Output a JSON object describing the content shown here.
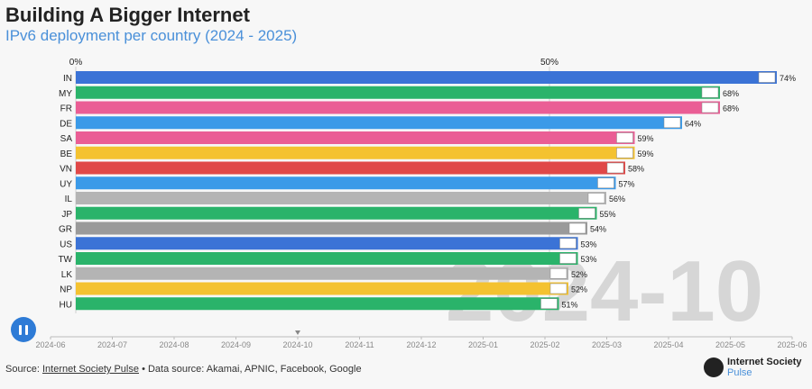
{
  "title": "Building A Bigger Internet",
  "subtitle": "IPv6 deployment per country (2024 - 2025)",
  "watermark": "2024-10",
  "footer": {
    "source_label": "Source:",
    "source_link": "Internet Society Pulse",
    "data_source": "• Data source: Akamai, APNIC, Facebook, Google"
  },
  "logo": {
    "line1": "Internet Society",
    "line2": "Pulse"
  },
  "controls": {
    "play_pause": "pause"
  },
  "chart_data": {
    "type": "bar",
    "orientation": "horizontal",
    "x_ticks": [
      "0%",
      "50%"
    ],
    "categories": [
      "IN",
      "MY",
      "FR",
      "DE",
      "SA",
      "BE",
      "VN",
      "UY",
      "IL",
      "JP",
      "GR",
      "US",
      "TW",
      "LK",
      "NP",
      "HU"
    ],
    "values": [
      74,
      68,
      68,
      64,
      59,
      59,
      58,
      57,
      56,
      55,
      54,
      53,
      53,
      52,
      52,
      51
    ],
    "value_labels": [
      "74%",
      "68%",
      "68%",
      "64%",
      "59%",
      "59%",
      "58%",
      "57%",
      "56%",
      "55%",
      "54%",
      "53%",
      "53%",
      "52%",
      "52%",
      "51%"
    ],
    "colors": [
      "#3b73d6",
      "#2ab36a",
      "#ea5e95",
      "#3b9ae8",
      "#ea5e95",
      "#f4c230",
      "#e04848",
      "#3b9ae8",
      "#b4b4b4",
      "#2ab36a",
      "#9a9a9a",
      "#3b73d6",
      "#2ab36a",
      "#b4b4b4",
      "#f4c230",
      "#2ab36a"
    ],
    "xlim": [
      0,
      80
    ],
    "timeline_labels": [
      "2024-06",
      "2024-07",
      "2024-08",
      "2024-09",
      "2024-10",
      "2024-11",
      "2024-12",
      "2025-01",
      "2025-02",
      "2025-03",
      "2025-04",
      "2025-05",
      "2025-06"
    ],
    "timeline_current": "2024-10"
  }
}
